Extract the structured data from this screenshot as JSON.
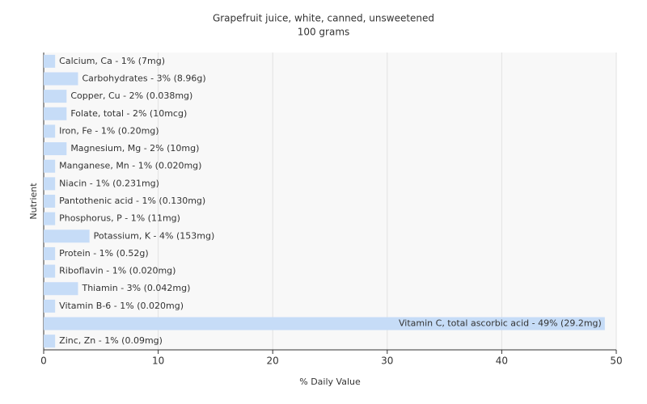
{
  "chart_data": {
    "type": "bar",
    "orientation": "horizontal",
    "title": "Grapefruit juice, white, canned, unsweetened",
    "subtitle": "100 grams",
    "x_label": "% Daily Value",
    "y_label": "Nutrient",
    "values": [
      1,
      3,
      2,
      2,
      1,
      2,
      1,
      1,
      1,
      1,
      4,
      1,
      1,
      3,
      1,
      49,
      1
    ],
    "value_labels": [
      "Calcium, Ca - 1% (7mg)",
      "Carbohydrates - 3% (8.96g)",
      "Copper, Cu - 2% (0.038mg)",
      "Folate, total - 2% (10mcg)",
      "Iron, Fe - 1% (0.20mg)",
      "Magnesium, Mg - 2% (10mg)",
      "Manganese, Mn - 1% (0.020mg)",
      "Niacin - 1% (0.231mg)",
      "Pantothenic acid - 1% (0.130mg)",
      "Phosphorus, P - 1% (11mg)",
      "Potassium, K - 4% (153mg)",
      "Protein - 1% (0.52g)",
      "Riboflavin - 1% (0.020mg)",
      "Thiamin - 3% (0.042mg)",
      "Vitamin B-6 - 1% (0.020mg)",
      "Vitamin C, total ascorbic acid - 49% (29.2mg)",
      "Zinc, Zn - 1% (0.09mg)"
    ],
    "color": "#c6dcf7",
    "xlim": [
      0,
      50
    ],
    "xticks": [
      0,
      10,
      20,
      30,
      40,
      50
    ],
    "grid": true
  }
}
